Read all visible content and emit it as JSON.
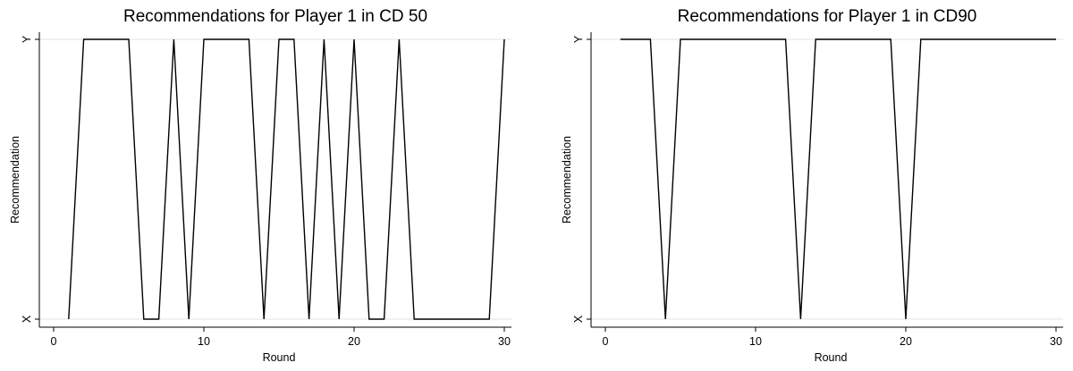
{
  "chart_data": [
    {
      "type": "line",
      "title": "Recommendations for Player 1 in CD 50",
      "xlabel": "Round",
      "ylabel": "Recommendation",
      "xlim": [
        0,
        30
      ],
      "xticks": [
        0,
        10,
        20,
        30
      ],
      "ycategories": [
        "X",
        "Y"
      ],
      "grid": true,
      "series": [
        {
          "x": [
            1,
            2,
            3,
            4,
            5,
            6,
            7,
            8,
            9,
            10,
            11,
            12,
            13,
            14,
            15,
            16,
            17,
            18,
            19,
            20,
            21,
            22,
            23,
            24,
            25,
            26,
            27,
            28,
            29,
            30
          ],
          "values": [
            "X",
            "Y",
            "Y",
            "Y",
            "Y",
            "X",
            "X",
            "Y",
            "X",
            "Y",
            "Y",
            "Y",
            "Y",
            "X",
            "Y",
            "Y",
            "X",
            "Y",
            "X",
            "Y",
            "X",
            "X",
            "Y",
            "X",
            "X",
            "X",
            "X",
            "X",
            "X",
            "Y"
          ]
        }
      ]
    },
    {
      "type": "line",
      "title": "Recommendations for Player 1 in CD90",
      "xlabel": "Round",
      "ylabel": "Recommendation",
      "xlim": [
        0,
        30
      ],
      "xticks": [
        0,
        10,
        20,
        30
      ],
      "ycategories": [
        "X",
        "Y"
      ],
      "grid": true,
      "series": [
        {
          "x": [
            1,
            2,
            3,
            4,
            5,
            6,
            7,
            8,
            9,
            10,
            11,
            12,
            13,
            14,
            15,
            16,
            17,
            18,
            19,
            20,
            21,
            22,
            23,
            24,
            25,
            26,
            27,
            28,
            29,
            30
          ],
          "values": [
            "Y",
            "Y",
            "Y",
            "X",
            "Y",
            "Y",
            "Y",
            "Y",
            "Y",
            "Y",
            "Y",
            "Y",
            "X",
            "Y",
            "Y",
            "Y",
            "Y",
            "Y",
            "Y",
            "X",
            "Y",
            "Y",
            "Y",
            "Y",
            "Y",
            "Y",
            "Y",
            "Y",
            "Y",
            "Y"
          ]
        }
      ]
    }
  ]
}
